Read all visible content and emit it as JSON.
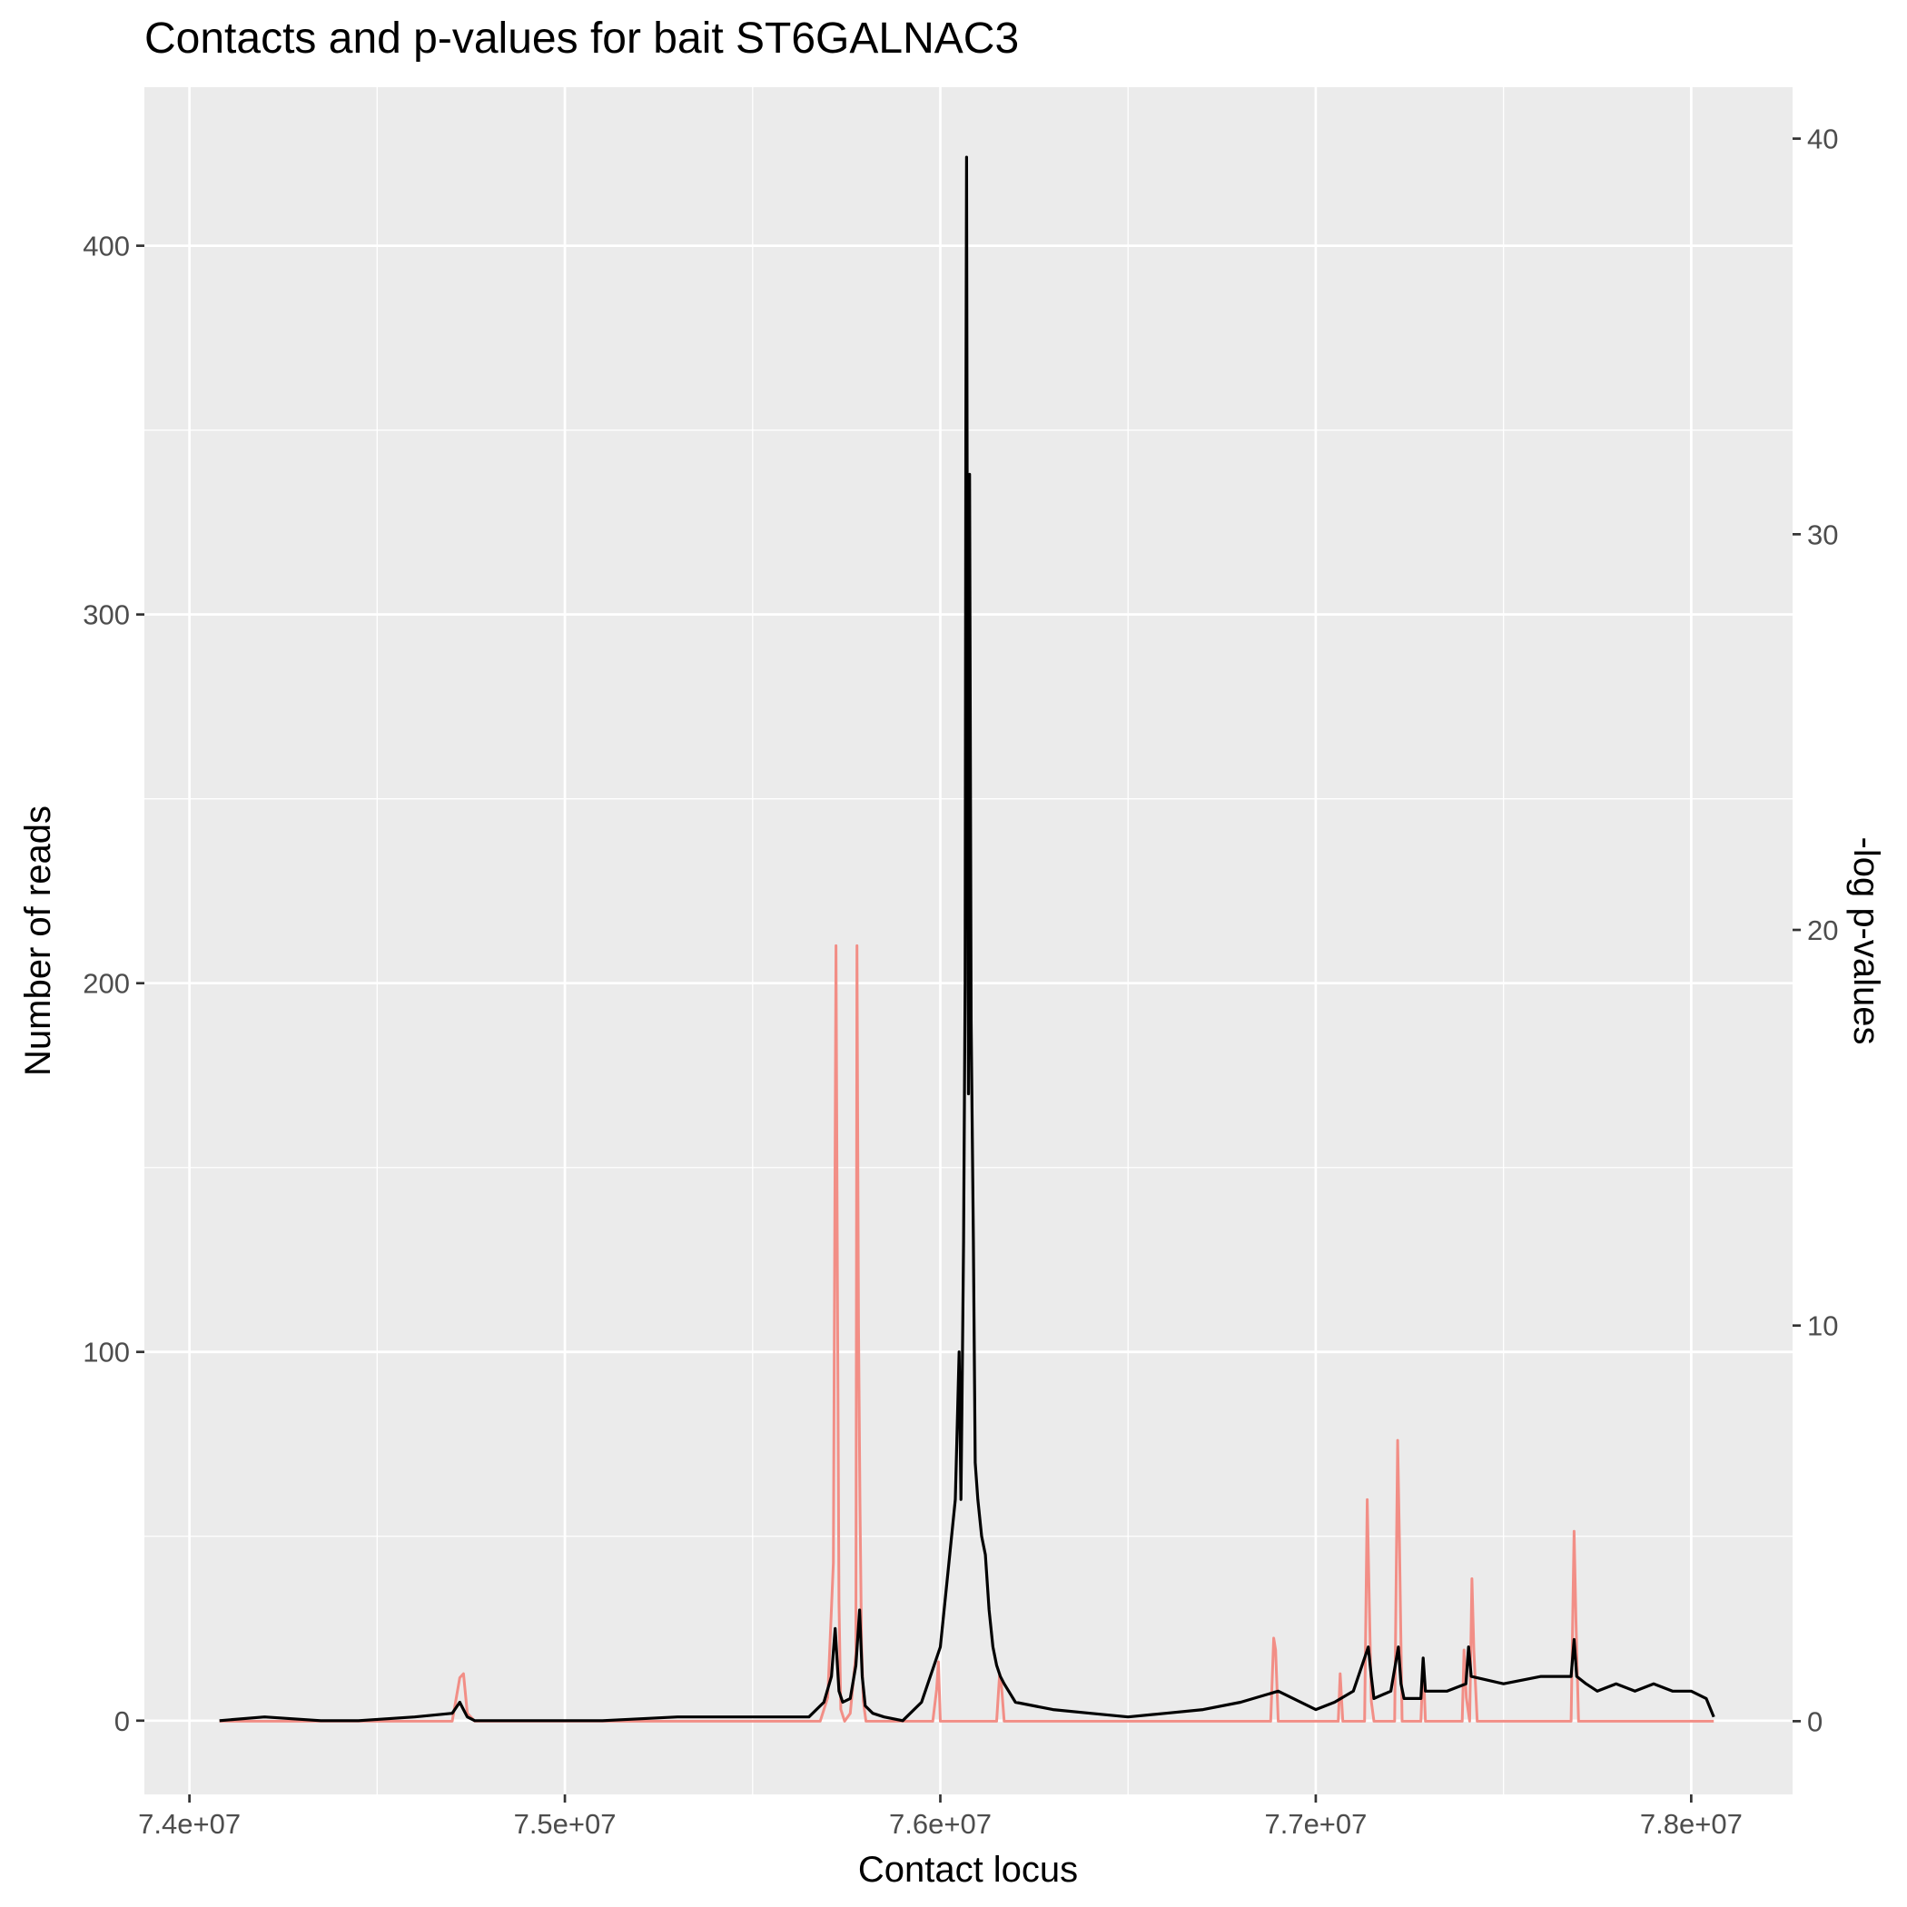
{
  "chart_data": {
    "type": "line",
    "title": "Contacts and p-values for bait ST6GALNAC3",
    "xlabel": "Contact locus",
    "ylabel": "Number of reads",
    "y2label": "-log p-values",
    "xlim": [
      73880000,
      78270000
    ],
    "ylim": [
      -20,
      443
    ],
    "y2lim": [
      -1.85,
      41.3
    ],
    "x_ticks": [
      {
        "value": 74000000,
        "label": "7.4e+07"
      },
      {
        "value": 75000000,
        "label": "7.5e+07"
      },
      {
        "value": 76000000,
        "label": "7.6e+07"
      },
      {
        "value": 77000000,
        "label": "7.7e+07"
      },
      {
        "value": 78000000,
        "label": "7.8e+07"
      }
    ],
    "y_ticks": [
      {
        "value": 0,
        "label": "0"
      },
      {
        "value": 100,
        "label": "100"
      },
      {
        "value": 200,
        "label": "200"
      },
      {
        "value": 300,
        "label": "300"
      },
      {
        "value": 400,
        "label": "400"
      }
    ],
    "y2_ticks": [
      {
        "value": 0,
        "label": "0"
      },
      {
        "value": 10,
        "label": "10"
      },
      {
        "value": 20,
        "label": "20"
      },
      {
        "value": 30,
        "label": "30"
      },
      {
        "value": 40,
        "label": "40"
      }
    ],
    "grid": true,
    "panel_background": "#ebebeb",
    "series": [
      {
        "role": "-log p-values (right axis)",
        "color": "#f28e86",
        "axis": "y2",
        "x": [
          74080000,
          74700000,
          74720000,
          74730000,
          74740000,
          74760000,
          75680000,
          75700000,
          75715000,
          75722000,
          75726000,
          75730000,
          75735000,
          75745000,
          75760000,
          75775000,
          75778000,
          75782000,
          75786000,
          75790000,
          75795000,
          75802000,
          75810000,
          75830000,
          75980000,
          75990000,
          75995000,
          76000000,
          76150000,
          76158000,
          76162000,
          76170000,
          76250000,
          76880000,
          76888000,
          76893000,
          76900000,
          77060000,
          77065000,
          77072000,
          77130000,
          77137000,
          77142000,
          77148000,
          77155000,
          77210000,
          77218000,
          77223000,
          77230000,
          77280000,
          77286000,
          77292000,
          77390000,
          77395000,
          77401000,
          77410000,
          77416000,
          77421000,
          77430000,
          77680000,
          77688000,
          77693000,
          77700000,
          77800000,
          78060000
        ],
        "values": [
          0,
          0,
          1.1,
          1.2,
          0.2,
          0,
          0,
          0.6,
          4,
          19.6,
          11,
          3,
          0.3,
          0,
          0.2,
          1.7,
          19.6,
          10,
          5.5,
          2,
          0.5,
          0,
          0,
          0,
          0,
          0.8,
          1.5,
          0,
          0,
          1.2,
          1.0,
          0,
          0,
          0,
          2.1,
          1.8,
          0,
          0,
          1.2,
          0,
          0,
          5.6,
          3.3,
          0.5,
          0,
          0,
          7.1,
          4.5,
          0,
          0,
          1.5,
          0,
          0,
          1.8,
          0.6,
          0,
          3.6,
          1.8,
          0,
          0,
          4.8,
          2.6,
          0,
          0,
          0
        ]
      },
      {
        "role": "Number of reads (left axis)",
        "color": "#000000",
        "axis": "y",
        "x": [
          74080000,
          74200000,
          74350000,
          74450000,
          74600000,
          74700000,
          74720000,
          74730000,
          74740000,
          74760000,
          74900000,
          75100000,
          75300000,
          75500000,
          75650000,
          75690000,
          75710000,
          75720000,
          75730000,
          75740000,
          75760000,
          75775000,
          75785000,
          75792000,
          75800000,
          75820000,
          75850000,
          75900000,
          75950000,
          76000000,
          76020000,
          76040000,
          76045000,
          76050000,
          76055000,
          76058000,
          76062000,
          76066000,
          76068000,
          76070000,
          76072000,
          76075000,
          76078000,
          76082000,
          76088000,
          76093000,
          76100000,
          76110000,
          76120000,
          76130000,
          76140000,
          76150000,
          76160000,
          76170000,
          76200000,
          76300000,
          76400000,
          76500000,
          76600000,
          76700000,
          76800000,
          76900000,
          77000000,
          77050000,
          77100000,
          77140000,
          77148000,
          77155000,
          77200000,
          77220000,
          77227000,
          77235000,
          77280000,
          77286000,
          77292000,
          77350000,
          77400000,
          77407000,
          77414000,
          77500000,
          77600000,
          77680000,
          77688000,
          77695000,
          77720000,
          77750000,
          77800000,
          77850000,
          77900000,
          77950000,
          78000000,
          78040000,
          78060000
        ],
        "values": [
          0,
          1,
          0,
          0,
          1,
          2,
          5,
          3,
          1,
          0,
          0,
          0,
          1,
          1,
          1,
          5,
          12,
          25,
          8,
          5,
          6,
          15,
          30,
          12,
          4,
          2,
          1,
          0,
          5,
          20,
          40,
          60,
          80,
          100,
          60,
          90,
          130,
          200,
          350,
          424,
          300,
          170,
          338,
          190,
          130,
          70,
          60,
          50,
          45,
          30,
          20,
          15,
          12,
          10,
          5,
          3,
          2,
          1,
          2,
          3,
          5,
          8,
          3,
          5,
          8,
          20,
          12,
          6,
          8,
          20,
          10,
          6,
          6,
          17,
          8,
          8,
          10,
          20,
          12,
          10,
          12,
          12,
          22,
          12,
          10,
          8,
          10,
          8,
          10,
          8,
          8,
          6,
          1
        ]
      }
    ]
  }
}
